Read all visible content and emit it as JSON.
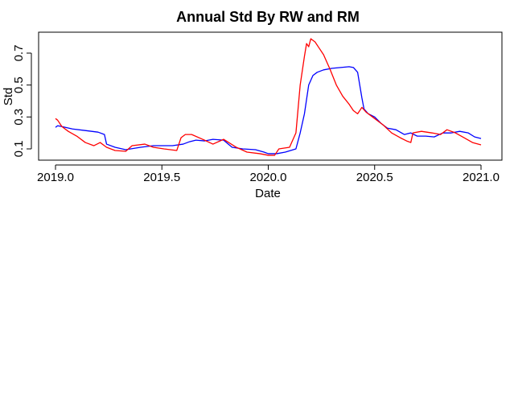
{
  "chart_data": {
    "type": "line",
    "title": "Annual Std By RW and RM",
    "xlabel": "Date",
    "ylabel": "Std",
    "xlim": [
      2019.0,
      2021.0
    ],
    "ylim": [
      0.05,
      0.8
    ],
    "x_ticks": [
      2019.0,
      2019.5,
      2020.0,
      2020.5,
      2021.0
    ],
    "x_tick_labels": [
      "2019.0",
      "2019.5",
      "2020.0",
      "2020.5",
      "2021.0"
    ],
    "y_ticks": [
      0.1,
      0.3,
      0.5,
      0.7
    ],
    "y_tick_labels": [
      "0.1",
      "0.3",
      "0.5",
      "0.7"
    ],
    "grid": false,
    "legend": "none",
    "series": [
      {
        "color": "#0000ff",
        "x": [
          2019.0,
          2019.01,
          2019.03,
          2019.08,
          2019.14,
          2019.2,
          2019.23,
          2019.24,
          2019.28,
          2019.33,
          2019.4,
          2019.46,
          2019.5,
          2019.55,
          2019.6,
          2019.63,
          2019.66,
          2019.7,
          2019.74,
          2019.79,
          2019.83,
          2019.88,
          2019.94,
          2019.98,
          2020.0,
          2020.04,
          2020.08,
          2020.13,
          2020.15,
          2020.17,
          2020.19,
          2020.21,
          2020.23,
          2020.26,
          2020.3,
          2020.34,
          2020.38,
          2020.4,
          2020.42,
          2020.44,
          2020.45,
          2020.47,
          2020.5,
          2020.53,
          2020.56,
          2020.6,
          2020.64,
          2020.67,
          2020.7,
          2020.74,
          2020.78,
          2020.82,
          2020.86,
          2020.9,
          2020.94,
          2020.97,
          2021.0
        ],
        "y": [
          0.235,
          0.245,
          0.24,
          0.225,
          0.215,
          0.205,
          0.19,
          0.13,
          0.11,
          0.095,
          0.11,
          0.12,
          0.12,
          0.12,
          0.13,
          0.145,
          0.155,
          0.15,
          0.16,
          0.155,
          0.11,
          0.1,
          0.095,
          0.08,
          0.07,
          0.07,
          0.08,
          0.1,
          0.2,
          0.32,
          0.5,
          0.56,
          0.58,
          0.595,
          0.605,
          0.61,
          0.615,
          0.61,
          0.58,
          0.42,
          0.35,
          0.32,
          0.3,
          0.26,
          0.23,
          0.22,
          0.19,
          0.2,
          0.18,
          0.18,
          0.175,
          0.2,
          0.2,
          0.21,
          0.2,
          0.175,
          0.165
        ]
      },
      {
        "color": "#ff0000",
        "x": [
          2019.0,
          2019.01,
          2019.03,
          2019.06,
          2019.1,
          2019.14,
          2019.18,
          2019.21,
          2019.24,
          2019.28,
          2019.33,
          2019.36,
          2019.42,
          2019.46,
          2019.51,
          2019.57,
          2019.59,
          2019.61,
          2019.64,
          2019.7,
          2019.74,
          2019.79,
          2019.85,
          2019.9,
          2019.96,
          2020.0,
          2020.03,
          2020.05,
          2020.1,
          2020.13,
          2020.15,
          2020.17,
          2020.18,
          2020.19,
          2020.2,
          2020.22,
          2020.24,
          2020.26,
          2020.29,
          2020.32,
          2020.35,
          2020.38,
          2020.4,
          2020.42,
          2020.44,
          2020.46,
          2020.49,
          2020.54,
          2020.58,
          2020.62,
          2020.65,
          2020.67,
          2020.68,
          2020.72,
          2020.77,
          2020.81,
          2020.84,
          2020.88,
          2020.92,
          2020.96,
          2021.0
        ],
        "y": [
          0.29,
          0.28,
          0.24,
          0.21,
          0.18,
          0.14,
          0.12,
          0.14,
          0.11,
          0.09,
          0.085,
          0.12,
          0.13,
          0.11,
          0.1,
          0.09,
          0.17,
          0.19,
          0.19,
          0.155,
          0.13,
          0.16,
          0.11,
          0.08,
          0.07,
          0.06,
          0.06,
          0.1,
          0.11,
          0.2,
          0.5,
          0.68,
          0.76,
          0.74,
          0.79,
          0.77,
          0.73,
          0.69,
          0.6,
          0.5,
          0.43,
          0.38,
          0.34,
          0.32,
          0.36,
          0.33,
          0.3,
          0.25,
          0.2,
          0.17,
          0.15,
          0.14,
          0.2,
          0.21,
          0.2,
          0.19,
          0.22,
          0.2,
          0.17,
          0.14,
          0.125
        ]
      }
    ]
  }
}
